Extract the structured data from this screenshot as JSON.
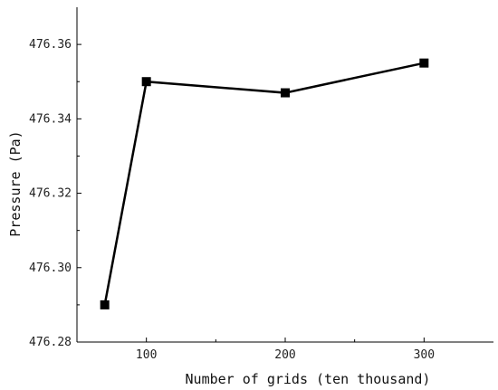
{
  "chart_data": {
    "type": "line",
    "title": "",
    "xlabel": "Number of grids (ten thousand)",
    "ylabel": "Pressure (Pa)",
    "xlim": [
      50,
      350
    ],
    "ylim": [
      476.28,
      476.37
    ],
    "x_ticks": [
      100,
      200,
      300
    ],
    "x_tick_labels": [
      "100",
      "200",
      "300"
    ],
    "y_ticks": [
      476.28,
      476.3,
      476.32,
      476.34,
      476.36
    ],
    "y_tick_labels": [
      "476.28",
      "476.30",
      "476.32",
      "476.34",
      "476.36"
    ],
    "grid": false,
    "legend": "none",
    "series": [
      {
        "x": [
          70,
          100,
          200,
          300
        ],
        "y": [
          476.29,
          476.35,
          476.347,
          476.355
        ],
        "marker": "square",
        "color": "#000000"
      }
    ]
  }
}
